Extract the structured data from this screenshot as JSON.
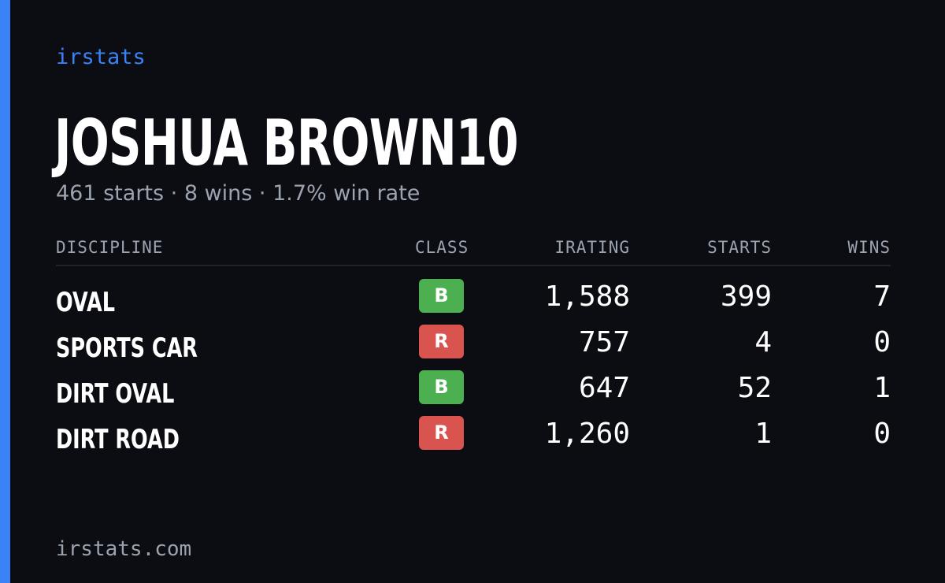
{
  "brand": "irstats",
  "player": {
    "name": "JOSHUA BROWN10",
    "summary": "461 starts · 8 wins · 1.7% win rate"
  },
  "table": {
    "headers": {
      "discipline": "DISCIPLINE",
      "class": "CLASS",
      "irating": "IRATING",
      "starts": "STARTS",
      "wins": "WINS"
    },
    "rows": [
      {
        "discipline": "OVAL",
        "class": "B",
        "class_color": "#4caf50",
        "irating": "1,588",
        "starts": "399",
        "wins": "7"
      },
      {
        "discipline": "SPORTS CAR",
        "class": "R",
        "class_color": "#d9534f",
        "irating": "757",
        "starts": "4",
        "wins": "0"
      },
      {
        "discipline": "DIRT OVAL",
        "class": "B",
        "class_color": "#4caf50",
        "irating": "647",
        "starts": "52",
        "wins": "1"
      },
      {
        "discipline": "DIRT ROAD",
        "class": "R",
        "class_color": "#d9534f",
        "irating": "1,260",
        "starts": "1",
        "wins": "0"
      }
    ]
  },
  "footer": {
    "domain": "irstats.com"
  },
  "colors": {
    "background": "#0b0d13",
    "accent": "#3b82f6",
    "muted_text": "#9ca3af",
    "class_b": "#4caf50",
    "class_r": "#d9534f"
  }
}
